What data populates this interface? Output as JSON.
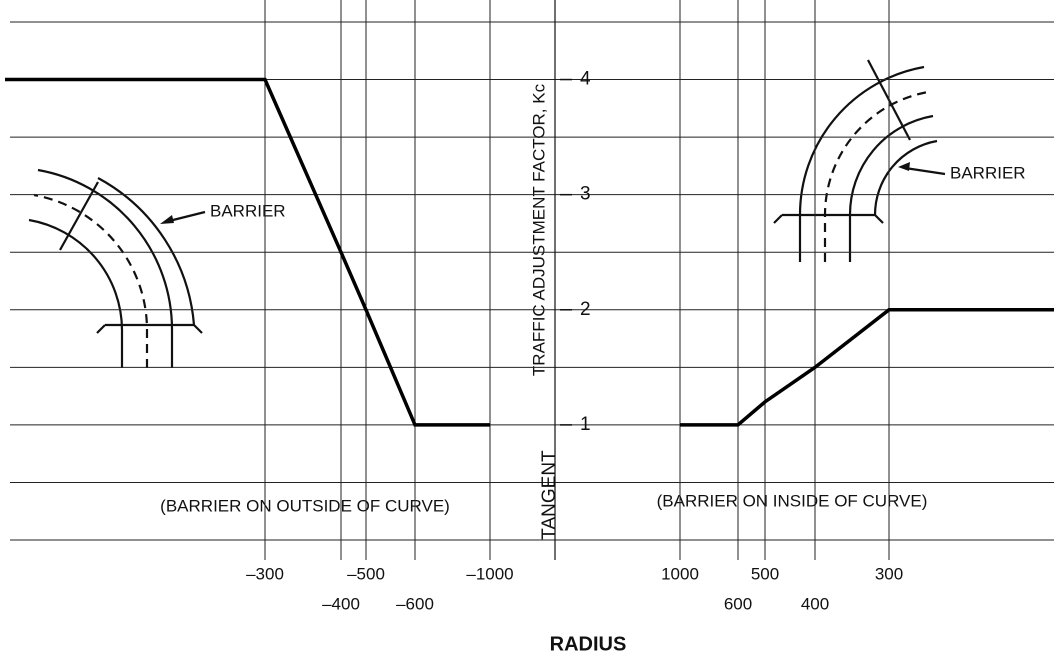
{
  "chart_data": {
    "type": "line",
    "y_label": "TRAFFIC ADJUSTMENT FACTOR, Kc",
    "x_label": "RADIUS",
    "categories": [
      null,
      "–300",
      "–400",
      "–500",
      "–600",
      "–1000",
      "TANGENT",
      "1000",
      "600",
      "500",
      "400",
      "300",
      null
    ],
    "series": [
      {
        "color": "#000000",
        "values": [
          4,
          4,
          2.5,
          2,
          1,
          1,
          null,
          1,
          1,
          1.2,
          1.5,
          2,
          2
        ]
      }
    ],
    "ylim": [
      0,
      4.5
    ],
    "yticks": [
      1,
      2,
      3,
      4
    ],
    "ygrid": [
      0,
      0.5,
      1,
      1.5,
      2,
      2.5,
      3,
      3.5,
      4,
      4.5
    ],
    "grid": true,
    "annotations": [
      "(BARRIER ON OUTSIDE OF CURVE)",
      "(BARRIER ON INSIDE OF CURVE)",
      "BARRIER",
      "BARRIER"
    ]
  }
}
